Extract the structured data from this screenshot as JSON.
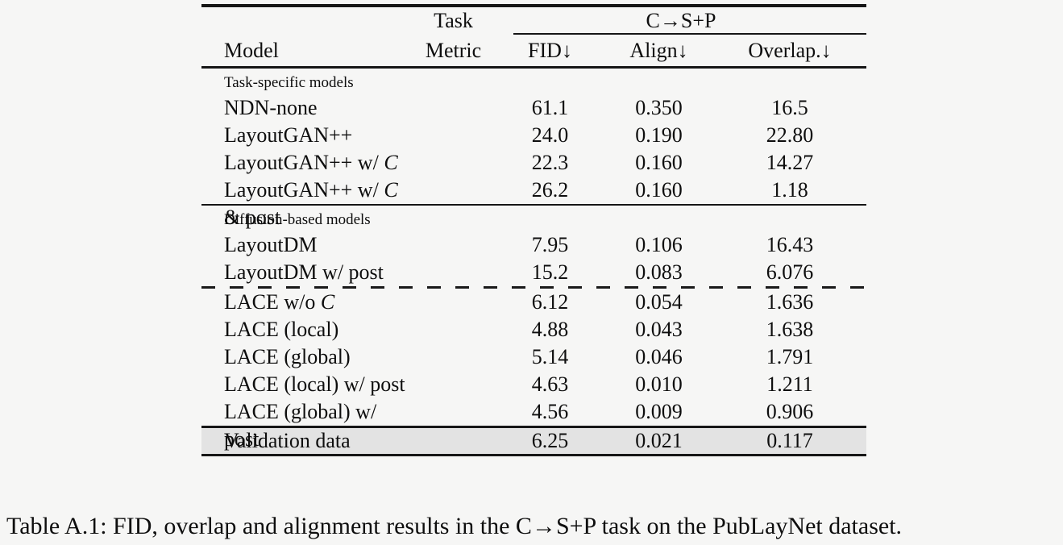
{
  "table": {
    "header": {
      "col_model": "Model",
      "col_metric": "Metric",
      "group_task_label": "Task",
      "group_span_label": "C→S+P",
      "metrics": [
        "FID↓",
        "Align↓",
        "Overlap.↓"
      ]
    },
    "sections": [
      {
        "label": "Task-specific models",
        "rows": [
          {
            "model": "NDN-none",
            "fid": "61.1",
            "align": "0.350",
            "overlap": "16.5"
          },
          {
            "model": "LayoutGAN++",
            "fid": "24.0",
            "align": "0.190",
            "overlap": "22.80"
          },
          {
            "model": "LayoutGAN++ w/ 𝒞",
            "fid": "22.3",
            "align": "0.160",
            "overlap": "14.27"
          },
          {
            "model": "LayoutGAN++ w/ 𝒞 & post",
            "fid": "26.2",
            "align": "0.160",
            "overlap": "1.18"
          }
        ]
      },
      {
        "label": "Diffusion-based models",
        "rows": [
          {
            "model": "LayoutDM",
            "fid": "7.95",
            "align": "0.106",
            "overlap": "16.43"
          },
          {
            "model": "LayoutDM w/ post",
            "fid": "15.2",
            "align": "0.083",
            "overlap": "6.076"
          },
          {
            "model": "LACE w/o 𝒞",
            "fid": "6.12",
            "align": "0.054",
            "overlap": "1.636",
            "dashed_above": true
          },
          {
            "model": "LACE (local)",
            "fid": "4.88",
            "align": "0.043",
            "overlap": "1.638"
          },
          {
            "model": "LACE (global)",
            "fid": "5.14",
            "align": "0.046",
            "overlap": "1.791"
          },
          {
            "model": "LACE (local) w/ post",
            "fid": "4.63",
            "align": "0.010",
            "overlap": "1.211"
          },
          {
            "model": "LACE (global) w/ post",
            "fid": "4.56",
            "align": "0.009",
            "overlap": "0.906"
          }
        ]
      }
    ],
    "footer_row": {
      "model": "Validation data",
      "fid": "6.25",
      "align": "0.021",
      "overlap": "0.117"
    }
  },
  "caption": "Table A.1: FID, overlap and alignment results in the C→S+P task on the PubLayNet dataset.",
  "colors": {
    "page_bg": "#f6f6f5",
    "rule": "#161616",
    "highlight_row_bg": "#e3e3e3",
    "text": "#0e0e0e"
  }
}
